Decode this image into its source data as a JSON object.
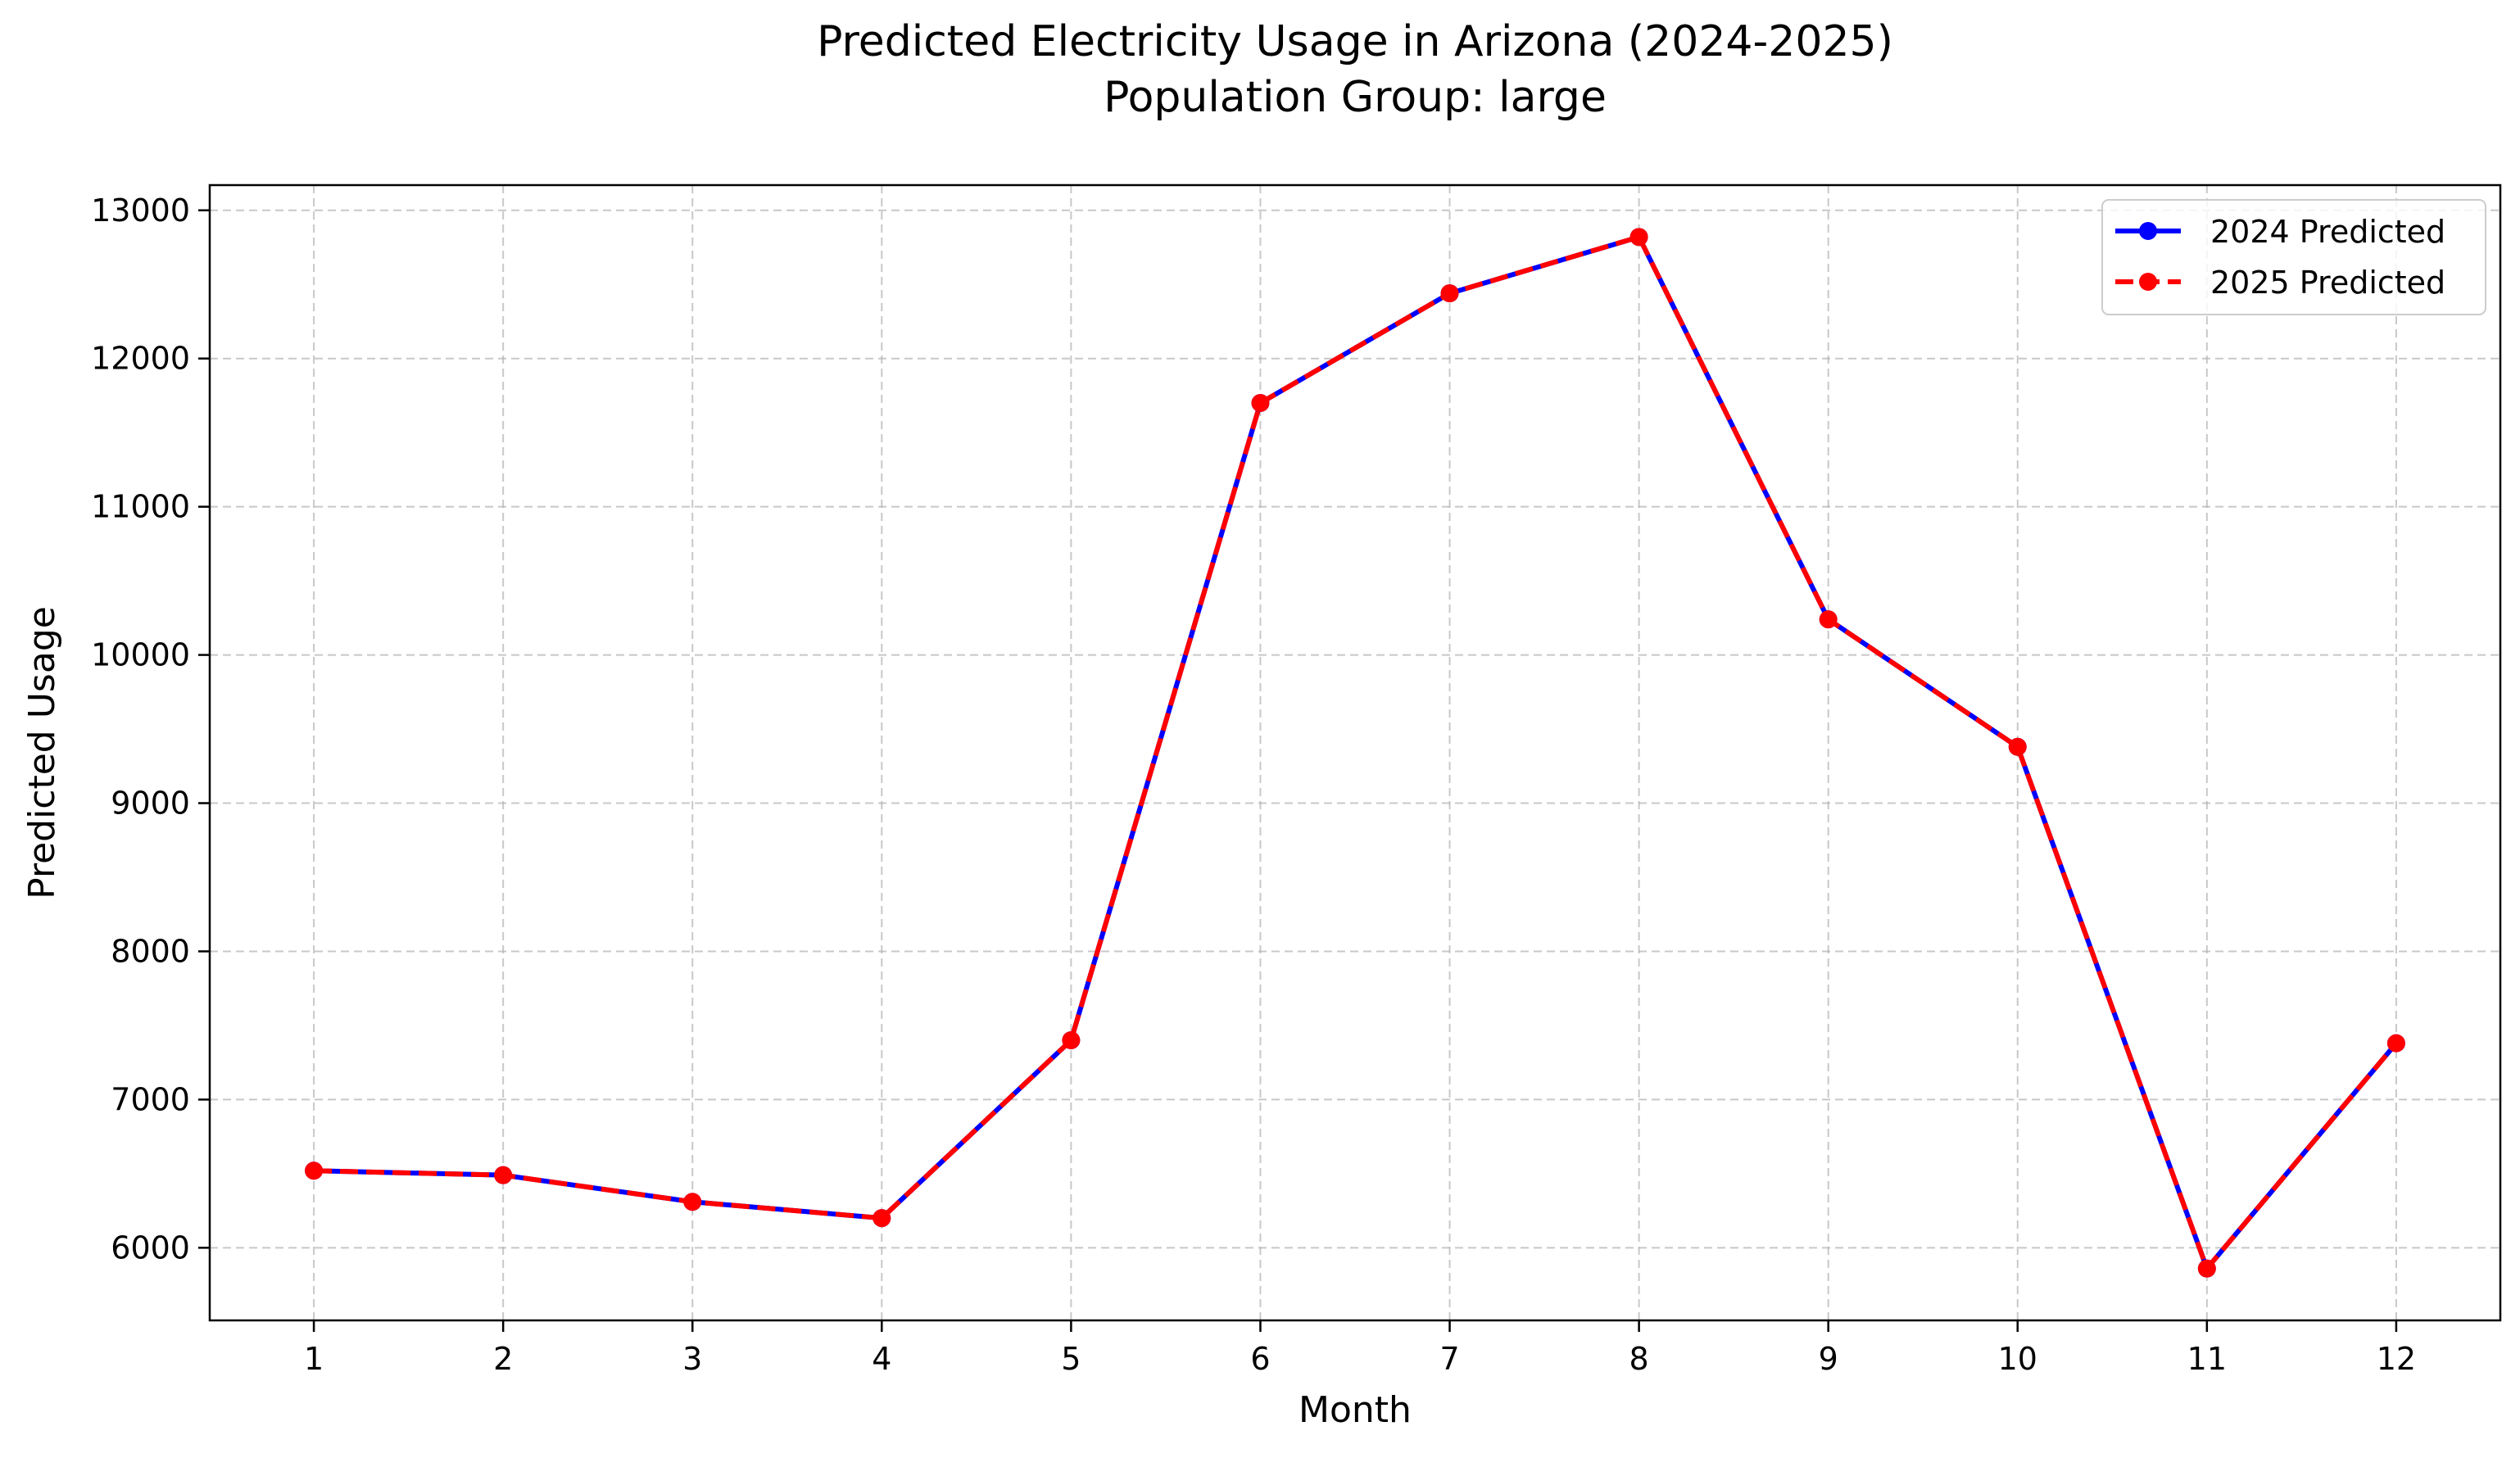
{
  "chart_data": {
    "type": "line",
    "title": "Predicted Electricity Usage in Arizona (2024-2025)",
    "subtitle": "Population Group: large",
    "xlabel": "Month",
    "ylabel": "Predicted Usage",
    "x": [
      1,
      2,
      3,
      4,
      5,
      6,
      7,
      8,
      9,
      10,
      11,
      12
    ],
    "x_tick_labels": [
      "1",
      "2",
      "3",
      "4",
      "5",
      "6",
      "7",
      "8",
      "9",
      "10",
      "11",
      "12"
    ],
    "xlim": [
      0.45,
      12.55
    ],
    "ylim": [
      5510,
      13170
    ],
    "y_ticks": [
      6000,
      7000,
      8000,
      9000,
      10000,
      11000,
      12000,
      13000
    ],
    "y_tick_labels": [
      "6000",
      "7000",
      "8000",
      "9000",
      "10000",
      "11000",
      "12000",
      "13000"
    ],
    "grid": true,
    "legend_position": "top-right",
    "series": [
      {
        "name": "2024 Predicted",
        "color": "#0000ff",
        "line_style": "solid",
        "marker": "circle",
        "values": [
          6520,
          6490,
          6310,
          6200,
          7400,
          11700,
          12440,
          12820,
          10240,
          9380,
          5860,
          7380
        ]
      },
      {
        "name": "2025 Predicted",
        "color": "#ff0000",
        "line_style": "dashed",
        "marker": "circle",
        "values": [
          6520,
          6490,
          6310,
          6200,
          7400,
          11700,
          12440,
          12820,
          10240,
          9380,
          5860,
          7380
        ]
      }
    ]
  }
}
